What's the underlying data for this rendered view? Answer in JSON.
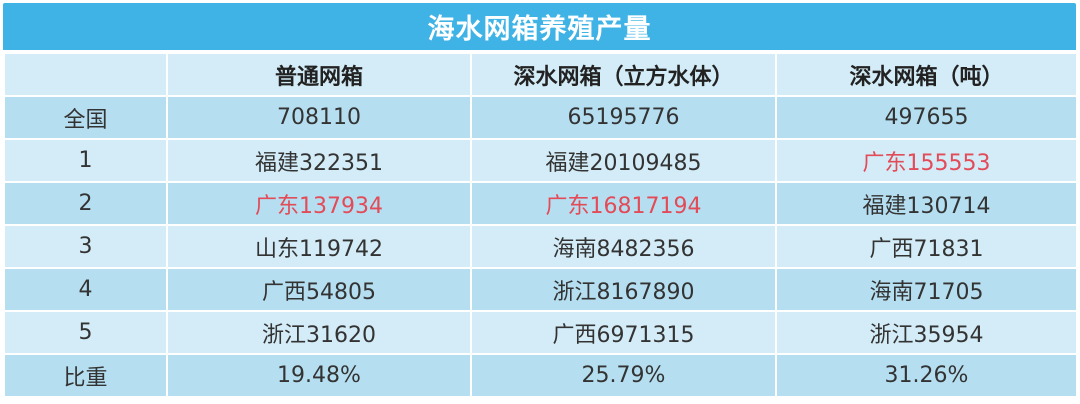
{
  "table": {
    "title": "海水网箱养殖产量",
    "headers": [
      "",
      "普通网箱",
      "深水网箱（立方水体）",
      "深水网箱（吨）"
    ],
    "rows": [
      {
        "label": "全国",
        "cells": [
          "708110",
          "65195776",
          "497655"
        ]
      },
      {
        "label": "1",
        "cells": [
          "福建322351",
          "福建20109485",
          "广东155553"
        ]
      },
      {
        "label": "2",
        "cells": [
          "广东137934",
          "广东16817194",
          "福建130714"
        ]
      },
      {
        "label": "3",
        "cells": [
          "山东119742",
          "海南8482356",
          "广西71831"
        ]
      },
      {
        "label": "4",
        "cells": [
          "广西54805",
          "浙江8167890",
          "海南71705"
        ]
      },
      {
        "label": "5",
        "cells": [
          "浙江31620",
          "广西6971315",
          "浙江35954"
        ]
      },
      {
        "label": "比重",
        "cells": [
          "19.48%",
          "25.79%",
          "31.26%"
        ]
      }
    ]
  },
  "colors": {
    "header_bar": "#3fb3e6",
    "row_light": "#d3ecf7",
    "row_dark": "#b5dff1",
    "highlight_text": "#e24b57"
  }
}
